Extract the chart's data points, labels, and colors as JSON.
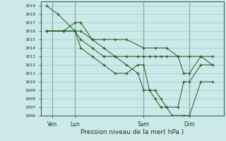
{
  "xlabel": "Pression niveau de la mer( hPa )",
  "bg_color": "#cce8e8",
  "grid_color": "#99cccc",
  "line_color": "#1a5c1a",
  "marker": "+",
  "ylim": [
    1006,
    1019.5
  ],
  "yticks": [
    1006,
    1007,
    1008,
    1009,
    1010,
    1011,
    1012,
    1013,
    1014,
    1015,
    1016,
    1017,
    1018,
    1019
  ],
  "xlim": [
    0,
    16
  ],
  "xtick_labels": [
    "Ven",
    "Lun",
    "Sam",
    "Dim"
  ],
  "xtick_positions": [
    1,
    3,
    9,
    13
  ],
  "vline_positions": [
    1,
    3,
    9,
    13
  ],
  "lines": [
    {
      "x": [
        0.5,
        1.5,
        3,
        3.5,
        4.5,
        5.5,
        6.5,
        7.5,
        9,
        10,
        11,
        12,
        13,
        14,
        15
      ],
      "y": [
        1019,
        1018,
        1016,
        1016,
        1015,
        1015,
        1015,
        1015,
        1014,
        1014,
        1014,
        1013,
        1013,
        1013,
        1013
      ]
    },
    {
      "x": [
        0.5,
        2,
        3,
        3.5,
        4.5,
        5.5,
        6.5,
        7.5,
        8.5,
        9,
        9.5,
        10,
        10.5,
        11,
        11.5,
        12.5,
        13,
        14,
        15
      ],
      "y": [
        1016,
        1016,
        1017,
        1017,
        1015,
        1014,
        1013,
        1012,
        1011,
        1009,
        1009,
        1008,
        1007,
        1007,
        1006,
        1006,
        1006,
        1010,
        1010
      ]
    },
    {
      "x": [
        0.5,
        2,
        3,
        3.5,
        4.5,
        5.5,
        6.5,
        7.5,
        8.5,
        9,
        9.5,
        10,
        10.5,
        11,
        12,
        12.5,
        13,
        14,
        15
      ],
      "y": [
        1016,
        1016,
        1016,
        1014,
        1013,
        1012,
        1011,
        1011,
        1012,
        1012,
        1009,
        1009,
        1008,
        1007,
        1007,
        1010,
        1010,
        1012,
        1012
      ]
    },
    {
      "x": [
        0.5,
        2,
        3,
        3.5,
        4.5,
        5.5,
        6.5,
        7.5,
        8.5,
        9,
        9.5,
        10,
        10.5,
        11,
        12,
        12.5,
        13,
        14,
        15
      ],
      "y": [
        1016,
        1016,
        1016,
        1015,
        1014,
        1013,
        1013,
        1013,
        1013,
        1013,
        1013,
        1013,
        1013,
        1013,
        1013,
        1011,
        1011,
        1013,
        1012
      ]
    }
  ]
}
